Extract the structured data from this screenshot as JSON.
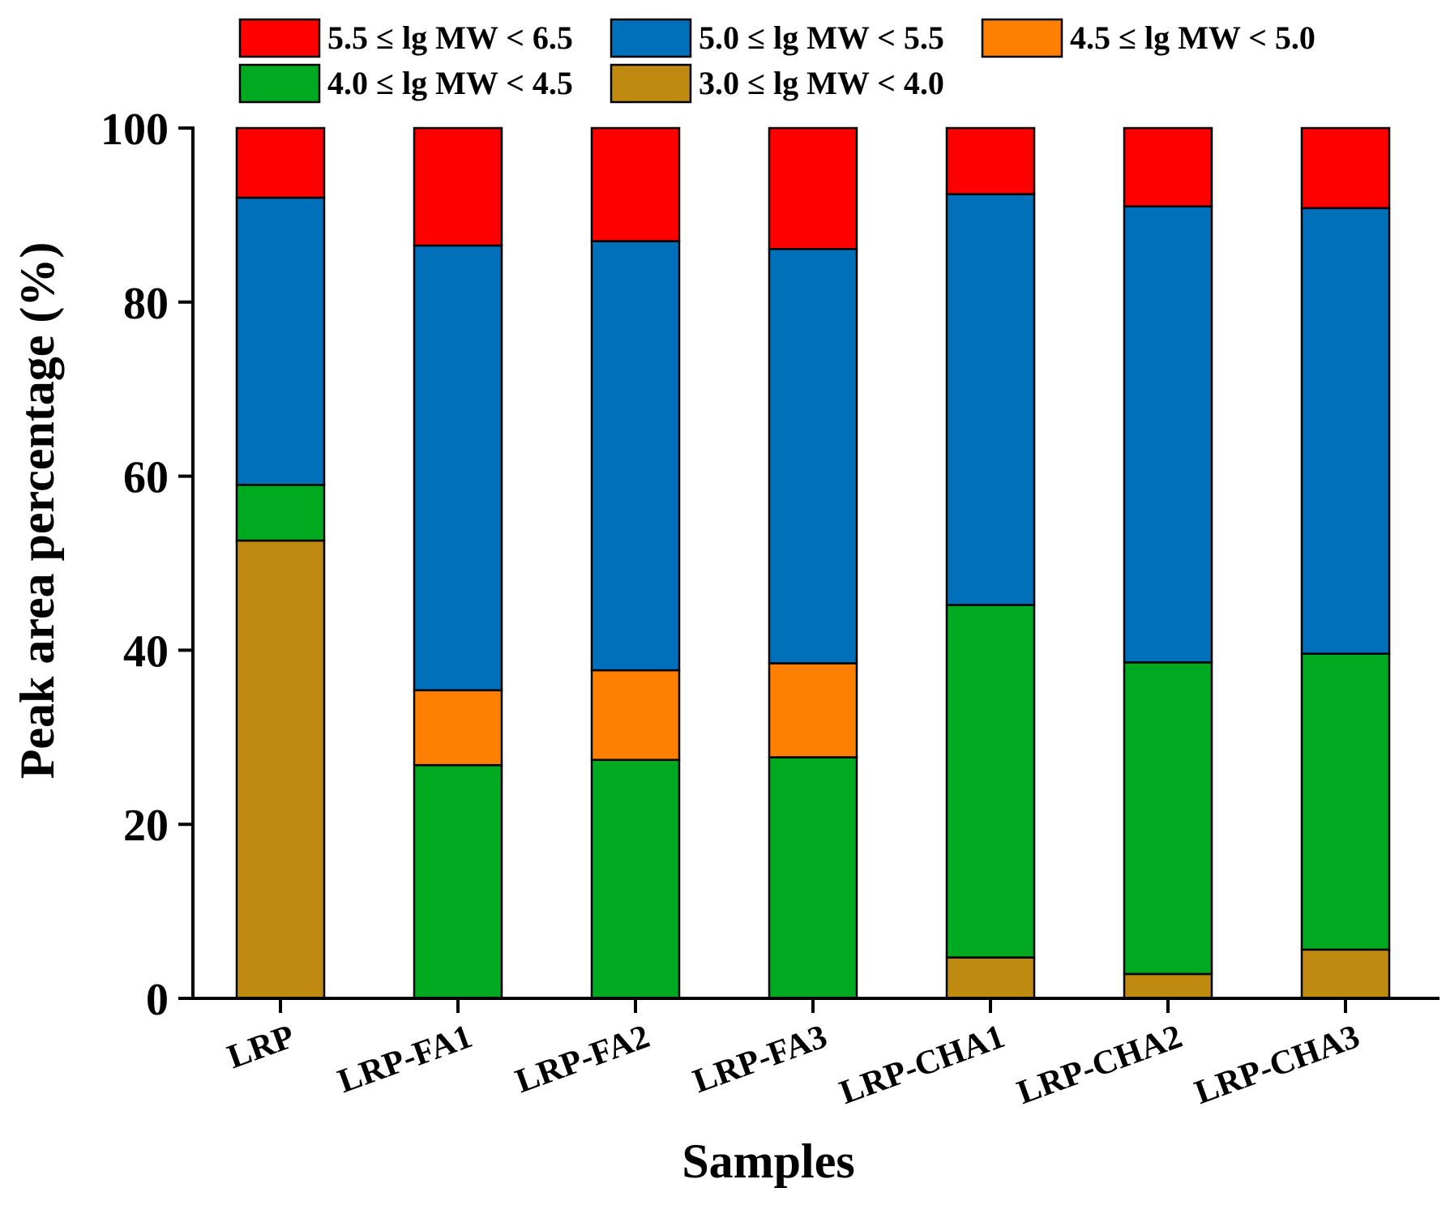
{
  "chart_data": {
    "type": "bar",
    "stacked": true,
    "title": "",
    "xlabel": "Samples",
    "ylabel": "Peak area percentage (%)",
    "ylim": [
      0,
      100
    ],
    "yticks": [
      0,
      20,
      40,
      60,
      80,
      100
    ],
    "ytick_labels": [
      "0",
      "20",
      "40",
      "60",
      "80",
      "100"
    ],
    "categories": [
      "LRP",
      "LRP-FA1",
      "LRP-FA2",
      "LRP-FA3",
      "LRP-CHA1",
      "LRP-CHA2",
      "LRP-CHA3"
    ],
    "legend_position": "top",
    "series": [
      {
        "name": "3.0 ≤ lg MW < 4.0",
        "color": "#BE8A10",
        "values": [
          52.6,
          0,
          0,
          0,
          4.7,
          2.8,
          5.6
        ]
      },
      {
        "name": "4.0 ≤ lg MW < 4.5",
        "color": "#00AA20",
        "values": [
          6.4,
          26.8,
          27.4,
          27.7,
          40.5,
          35.8,
          34.0
        ]
      },
      {
        "name": "4.5 ≤ lg MW < 5.0",
        "color": "#FF8000",
        "values": [
          0,
          8.6,
          10.3,
          10.8,
          0,
          0,
          0
        ]
      },
      {
        "name": "5.0 ≤ lg MW < 5.5",
        "color": "#0070BA",
        "values": [
          33.0,
          51.1,
          49.3,
          47.6,
          47.2,
          52.4,
          51.2
        ]
      },
      {
        "name": "5.5 ≤ lg MW < 6.5",
        "color": "#FF0000",
        "values": [
          8.0,
          13.5,
          13.0,
          13.9,
          7.6,
          9.0,
          9.2
        ]
      }
    ],
    "legend_order": [
      4,
      3,
      2,
      1,
      0
    ]
  }
}
